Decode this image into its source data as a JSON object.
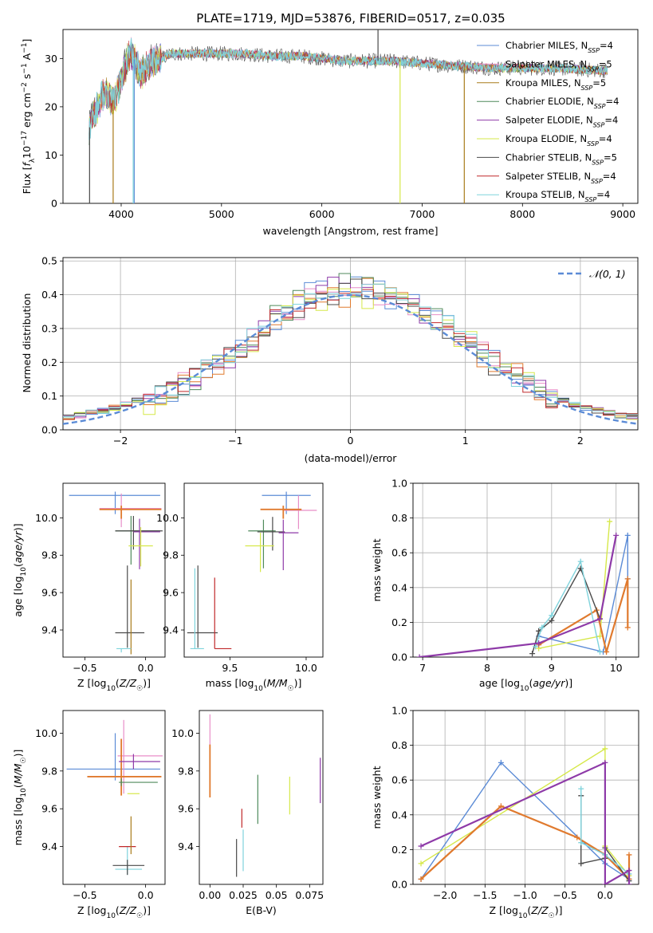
{
  "title": "PLATE=1719, MJD=53876, FIBERID=0517, z=0.035",
  "series_styles": [
    {
      "name": "Chabrier MILES, N_SSP=4",
      "color": "#5b8bd6"
    },
    {
      "name": "Salpeter MILES, N_SSP=5",
      "color": "#e88ec8"
    },
    {
      "name": "Kroupa MILES, N_SSP=5",
      "color": "#a87b1a"
    },
    {
      "name": "Chabrier ELODIE, N_SSP=4",
      "color": "#4f8a5b"
    },
    {
      "name": "Salpeter ELODIE, N_SSP=4",
      "color": "#8e3aa8"
    },
    {
      "name": "Kroupa ELODIE, N_SSP=4",
      "color": "#d6e84a"
    },
    {
      "name": "Chabrier STELIB, N_SSP=5",
      "color": "#4a4a4a"
    },
    {
      "name": "Salpeter STELIB, N_SSP=4",
      "color": "#c0282a"
    },
    {
      "name": "Kroupa STELIB, N_SSP=4",
      "color": "#7fd3dc"
    }
  ],
  "extra_colors": {
    "orange": "#e07a2e",
    "gauss": "#5b8bd6",
    "grid": "#b0b0b0"
  },
  "chart_data": [
    {
      "id": "spectrum",
      "type": "line",
      "title": "PLATE=1719, MJD=53876, FIBERID=0517, z=0.035",
      "xlabel": "wavelength [Angstrom, rest frame]",
      "ylabel": "Flux [f_λ10^-17 erg cm^-2 s^-1 A^-1]",
      "xlim": [
        3420,
        9150
      ],
      "ylim": [
        0,
        36
      ],
      "xticks": [
        4000,
        5000,
        6000,
        7000,
        8000,
        9000
      ],
      "yticks": [
        0,
        10,
        20,
        30
      ],
      "legend": [
        {
          "label": "Chabrier MILES, N",
          "sub": "SSP",
          "tail": "=4"
        },
        {
          "label": "Salpeter MILES, N",
          "sub": "SSP",
          "tail": "=5"
        },
        {
          "label": "Kroupa MILES, N",
          "sub": "SSP",
          "tail": "=5"
        },
        {
          "label": "Chabrier ELODIE, N",
          "sub": "SSP",
          "tail": "=4"
        },
        {
          "label": "Salpeter ELODIE, N",
          "sub": "SSP",
          "tail": "=4"
        },
        {
          "label": "Kroupa ELODIE, N",
          "sub": "SSP",
          "tail": "=4"
        },
        {
          "label": "Chabrier STELIB, N",
          "sub": "SSP",
          "tail": "=5"
        },
        {
          "label": "Salpeter STELIB, N",
          "sub": "SSP",
          "tail": "=4"
        },
        {
          "label": "Kroupa STELIB, N",
          "sub": "SSP",
          "tail": "=4"
        }
      ],
      "legend_loc": "upper right",
      "continuum": [
        [
          3680,
          15
        ],
        [
          3700,
          18
        ],
        [
          3750,
          19
        ],
        [
          3800,
          22
        ],
        [
          3850,
          23
        ],
        [
          3900,
          21
        ],
        [
          3950,
          22
        ],
        [
          4000,
          26
        ],
        [
          4050,
          29
        ],
        [
          4100,
          31
        ],
        [
          4200,
          27
        ],
        [
          4300,
          29
        ],
        [
          4400,
          30
        ],
        [
          4500,
          31
        ],
        [
          4700,
          31
        ],
        [
          5000,
          31
        ],
        [
          5200,
          31
        ],
        [
          5500,
          30.5
        ],
        [
          5800,
          30.5
        ],
        [
          6000,
          30
        ],
        [
          6200,
          29.5
        ],
        [
          6500,
          29.5
        ],
        [
          6700,
          29.5
        ],
        [
          7000,
          29
        ],
        [
          7300,
          28.5
        ],
        [
          7500,
          28.3
        ],
        [
          7700,
          28
        ],
        [
          8000,
          28
        ],
        [
          8300,
          28
        ],
        [
          8600,
          27.7
        ],
        [
          8800,
          27.5
        ],
        [
          8850,
          27.5
        ]
      ],
      "spectrum_xrange": [
        3680,
        8850
      ],
      "dropouts": [
        {
          "x": 4130,
          "color_index": 0,
          "y": 0
        },
        {
          "x": 3920,
          "color_index": 2,
          "y": 0
        },
        {
          "x": 6780,
          "color_index": 5,
          "y": 0
        },
        {
          "x": 7420,
          "color_index": 2,
          "y": 0
        },
        {
          "x": 3685,
          "color_index": 6,
          "y": 0
        },
        {
          "x": 4120,
          "color_index": 8,
          "y": 0
        },
        {
          "x": 6560,
          "color_index": 6,
          "y": 36
        }
      ]
    },
    {
      "id": "residuals",
      "type": "histogram",
      "xlabel": "(data-model)/error",
      "ylabel": "Normed distribution",
      "xlim": [
        -2.5,
        2.5
      ],
      "ylim": [
        0,
        0.51
      ],
      "xticks": [
        -2,
        -1,
        0,
        1,
        2
      ],
      "yticks": [
        0.0,
        0.1,
        0.2,
        0.3,
        0.4,
        0.5
      ],
      "bin_width": 0.1,
      "grid": true,
      "legend": "𝒩(0, 1)",
      "legend_loc": "upper right"
    },
    {
      "id": "age-vs-Z",
      "type": "errorbar",
      "xlabel": "Z [log10(Z/Z☉)]",
      "ylabel": "age  [log10(age/yr)]",
      "xlim": [
        -0.68,
        0.16
      ],
      "ylim": [
        9.255,
        10.185
      ],
      "xticks": [
        -0.5,
        0.0
      ],
      "yticks": [
        9.4,
        9.6,
        9.8,
        10.0
      ],
      "points": [
        {
          "c": 0,
          "x": -0.25,
          "y": 10.12,
          "xerr": [
            0.38,
            0.37
          ],
          "yerr": [
            0.1,
            0.02
          ]
        },
        {
          "c": 1,
          "x": -0.2,
          "y": 10.05,
          "xerr": [
            0.18,
            0.33
          ],
          "yerr": [
            0.1,
            0.08
          ]
        },
        {
          "c": 9,
          "x": -0.2,
          "y": 10.045,
          "xerr": [
            0.18,
            0.33
          ],
          "yerr": [
            0.05,
            0.02
          ]
        },
        {
          "c": 3,
          "x": -0.12,
          "y": 9.93,
          "xerr": [
            0.13,
            0.24
          ],
          "yerr": [
            0.18,
            0.08
          ]
        },
        {
          "c": 6,
          "x": -0.1,
          "y": 9.93,
          "xerr": [
            0.15,
            0.24
          ],
          "yerr": [
            0.1,
            0.08
          ]
        },
        {
          "c": 4,
          "x": -0.05,
          "y": 9.925,
          "xerr": [
            0.05,
            0.17
          ],
          "yerr": [
            0.2,
            0.07
          ]
        },
        {
          "c": 5,
          "x": -0.04,
          "y": 9.85,
          "xerr": [
            0.1,
            0.1
          ],
          "yerr": [
            0.11,
            0.1
          ]
        },
        {
          "c": 6,
          "x": -0.15,
          "y": 9.385,
          "xerr": [
            0.1,
            0.14
          ],
          "yerr": [
            0.08,
            0.36
          ]
        },
        {
          "c": 2,
          "x": -0.12,
          "y": 9.67,
          "xerr": [
            0.0,
            0.0
          ],
          "yerr": [
            0.4,
            0.0
          ]
        },
        {
          "c": 8,
          "x": -0.2,
          "y": 9.3,
          "xerr": [
            0.04,
            0.08
          ],
          "yerr": [
            0.02,
            0.0
          ]
        }
      ]
    },
    {
      "id": "age-vs-mass",
      "type": "errorbar",
      "xlabel": "mass [log10(M/M☉)]",
      "ylabel": "",
      "xlim": [
        9.2,
        10.11
      ],
      "ylim": [
        9.255,
        10.185
      ],
      "xticks": [
        9.5,
        10.0
      ],
      "yticks": [
        9.4,
        9.6,
        9.8,
        10.0
      ],
      "points": [
        {
          "c": 0,
          "x": 9.87,
          "y": 10.12,
          "xerr": [
            0.16,
            0.16
          ],
          "yerr": [
            0.1,
            0.02
          ]
        },
        {
          "c": 1,
          "x": 9.95,
          "y": 10.04,
          "xerr": [
            0.1,
            0.12
          ],
          "yerr": [
            0.1,
            0.08
          ]
        },
        {
          "c": 9,
          "x": 9.85,
          "y": 10.045,
          "xerr": [
            0.15,
            0.12
          ],
          "yerr": [
            0.05,
            0.02
          ]
        },
        {
          "c": 3,
          "x": 9.72,
          "y": 9.93,
          "xerr": [
            0.1,
            0.08
          ],
          "yerr": [
            0.2,
            0.06
          ]
        },
        {
          "c": 6,
          "x": 9.78,
          "y": 9.925,
          "xerr": [
            0.1,
            0.08
          ],
          "yerr": [
            0.1,
            0.08
          ]
        },
        {
          "c": 4,
          "x": 9.85,
          "y": 9.92,
          "xerr": [
            0.03,
            0.1
          ],
          "yerr": [
            0.2,
            0.07
          ]
        },
        {
          "c": 5,
          "x": 9.7,
          "y": 9.85,
          "xerr": [
            0.1,
            0.09
          ],
          "yerr": [
            0.14,
            0.07
          ]
        },
        {
          "c": 6,
          "x": 9.29,
          "y": 9.385,
          "xerr": [
            0.07,
            0.13
          ],
          "yerr": [
            0.08,
            0.36
          ]
        },
        {
          "c": 7,
          "x": 9.4,
          "y": 9.3,
          "xerr": [
            0.0,
            0.11
          ],
          "yerr": [
            0.0,
            0.38
          ]
        },
        {
          "c": 8,
          "x": 9.27,
          "y": 9.3,
          "xerr": [
            0.03,
            0.06
          ],
          "yerr": [
            0.0,
            0.43
          ]
        }
      ]
    },
    {
      "id": "mass-weight-vs-age",
      "type": "line",
      "xlabel": "age  [log10(age/yr)]",
      "ylabel": "mass weight",
      "xlim": [
        6.85,
        10.35
      ],
      "ylim": [
        0,
        1.0
      ],
      "xticks": [
        7,
        8,
        9,
        10
      ],
      "yticks": [
        0.0,
        0.2,
        0.4,
        0.6,
        0.8,
        1.0
      ],
      "grid": true,
      "series": [
        {
          "c": 0,
          "x": [
            8.8,
            9.8,
            10.18,
            10.18
          ],
          "y": [
            0.12,
            0.03,
            0.7,
            0.45
          ],
          "w": 1.4
        },
        {
          "c": 5,
          "x": [
            8.8,
            9.75,
            9.9
          ],
          "y": [
            0.05,
            0.12,
            0.78
          ],
          "w": 1.4
        },
        {
          "c": 9,
          "x": [
            8.8,
            9.7,
            9.85,
            10.18,
            10.18
          ],
          "y": [
            0.07,
            0.27,
            0.03,
            0.45,
            0.17
          ],
          "w": 2.2
        },
        {
          "c": 6,
          "x": [
            8.7,
            8.8,
            9.0,
            9.45,
            9.75
          ],
          "y": [
            0.02,
            0.15,
            0.21,
            0.51,
            0.22
          ],
          "w": 1.4
        },
        {
          "c": 8,
          "x": [
            8.75,
            8.85,
            9.0,
            9.45,
            9.75
          ],
          "y": [
            0.06,
            0.17,
            0.24,
            0.55,
            0.03
          ],
          "w": 1.4
        },
        {
          "c": 4,
          "x": [
            6.95,
            8.8,
            9.75,
            10.0
          ],
          "y": [
            0.0,
            0.08,
            0.22,
            0.7
          ],
          "w": 2.2
        }
      ]
    },
    {
      "id": "mass-vs-Z",
      "type": "errorbar",
      "xlabel": "Z [log10(Z/Z☉)]",
      "ylabel": "mass [log10(M/M☉)]",
      "xlim": [
        -0.68,
        0.16
      ],
      "ylim": [
        9.2,
        10.12
      ],
      "xticks": [
        -0.5,
        0.0
      ],
      "yticks": [
        9.4,
        9.6,
        9.8,
        10.0
      ],
      "points": [
        {
          "c": 0,
          "x": -0.25,
          "y": 9.81,
          "xerr": [
            0.4,
            0.37
          ],
          "yerr": [
            0.06,
            0.19
          ]
        },
        {
          "c": 1,
          "x": -0.18,
          "y": 9.88,
          "xerr": [
            0.05,
            0.32
          ],
          "yerr": [
            0.2,
            0.19
          ]
        },
        {
          "c": 9,
          "x": -0.2,
          "y": 9.77,
          "xerr": [
            0.28,
            0.33
          ],
          "yerr": [
            0.1,
            0.2
          ]
        },
        {
          "c": 4,
          "x": -0.1,
          "y": 9.85,
          "xerr": [
            0.12,
            0.22
          ],
          "yerr": [
            0.04,
            0.04
          ]
        },
        {
          "c": 3,
          "x": -0.2,
          "y": 9.74,
          "xerr": [
            0.02,
            0.3
          ],
          "yerr": [
            0.02,
            0.02
          ]
        },
        {
          "c": 5,
          "x": -0.05,
          "y": 9.68,
          "xerr": [
            0.1,
            0.0
          ],
          "yerr": [
            0.0,
            0.0
          ]
        },
        {
          "c": 8,
          "x": -0.15,
          "y": 9.28,
          "xerr": [
            0.1,
            0.12
          ],
          "yerr": [
            0.03,
            0.12
          ]
        },
        {
          "c": 6,
          "x": -0.15,
          "y": 9.3,
          "xerr": [
            0.12,
            0.14
          ],
          "yerr": [
            0.05,
            0.03
          ]
        },
        {
          "c": 7,
          "x": -0.15,
          "y": 9.4,
          "xerr": [
            0.07,
            0.07
          ],
          "yerr": [
            0.0,
            0.0
          ]
        },
        {
          "c": 2,
          "x": -0.12,
          "y": 9.46,
          "xerr": [
            0.0,
            0.0
          ],
          "yerr": [
            0.1,
            0.1
          ]
        }
      ]
    },
    {
      "id": "mass-vs-EBV",
      "type": "errorbar",
      "xlabel": "E(B-V)",
      "ylabel": "",
      "xlim": [
        -0.008,
        0.085
      ],
      "ylim": [
        9.2,
        10.12
      ],
      "xticks": [
        0.0,
        0.025,
        0.05,
        0.075
      ],
      "xticklabels": [
        "0.00",
        "0.025",
        "0.05",
        "0.075"
      ],
      "yticks": [
        9.4,
        9.6,
        9.8,
        10.0
      ],
      "points": [
        {
          "c": 1,
          "x": 0.0,
          "y": 9.9,
          "xerr": [
            0.0,
            0.0
          ],
          "yerr": [
            0.1,
            0.2
          ]
        },
        {
          "c": 9,
          "x": 0.0,
          "y": 9.8,
          "xerr": [
            0.0,
            0.0
          ],
          "yerr": [
            0.14,
            0.14
          ]
        },
        {
          "c": 8,
          "x": 0.025,
          "y": 9.37,
          "xerr": [
            0.0,
            0.0
          ],
          "yerr": [
            0.1,
            0.12
          ]
        },
        {
          "c": 6,
          "x": 0.02,
          "y": 9.34,
          "xerr": [
            0.0,
            0.0
          ],
          "yerr": [
            0.1,
            0.1
          ]
        },
        {
          "c": 7,
          "x": 0.024,
          "y": 9.55,
          "xerr": [
            0.0,
            0.0
          ],
          "yerr": [
            0.05,
            0.05
          ]
        },
        {
          "c": 3,
          "x": 0.036,
          "y": 9.65,
          "xerr": [
            0.0,
            0.0
          ],
          "yerr": [
            0.13,
            0.13
          ]
        },
        {
          "c": 5,
          "x": 0.06,
          "y": 9.67,
          "xerr": [
            0.0,
            0.0
          ],
          "yerr": [
            0.1,
            0.1
          ]
        },
        {
          "c": 4,
          "x": 0.083,
          "y": 9.75,
          "xerr": [
            0.0,
            0.0
          ],
          "yerr": [
            0.12,
            0.12
          ]
        }
      ]
    },
    {
      "id": "mass-weight-vs-Z",
      "type": "line",
      "xlabel": "Z [log10(Z/Z☉)]",
      "ylabel": "mass weight",
      "xlim": [
        -2.4,
        0.42
      ],
      "ylim": [
        0,
        1.0
      ],
      "xticks": [
        -2.0,
        -1.5,
        -1.0,
        -0.5,
        0.0
      ],
      "yticks": [
        0.0,
        0.2,
        0.4,
        0.6,
        0.8,
        1.0
      ],
      "grid": true,
      "series": [
        {
          "c": 0,
          "x": [
            -2.3,
            -1.3,
            0.0,
            0.3
          ],
          "y": [
            0.03,
            0.7,
            0.12,
            0.03
          ],
          "w": 1.4
        },
        {
          "c": 5,
          "x": [
            -2.3,
            0.0,
            0.0,
            0.3
          ],
          "y": [
            0.12,
            0.78,
            0.22,
            0.05
          ],
          "w": 1.4
        },
        {
          "c": 9,
          "x": [
            -2.3,
            -1.3,
            -0.35,
            0.0,
            0.3,
            0.3
          ],
          "y": [
            0.03,
            0.45,
            0.27,
            0.17,
            0.03,
            0.17
          ],
          "w": 2.2
        },
        {
          "c": 6,
          "x": [
            -0.3,
            -0.3,
            0.0,
            0.0,
            0.3
          ],
          "y": [
            0.51,
            0.12,
            0.15,
            0.21,
            0.02
          ],
          "w": 1.4
        },
        {
          "c": 8,
          "x": [
            -0.3,
            -0.3,
            0.0,
            0.3
          ],
          "y": [
            0.55,
            0.24,
            0.17,
            0.06
          ],
          "w": 1.4
        },
        {
          "c": 4,
          "x": [
            -2.3,
            0.0,
            0.0,
            0.3,
            0.3
          ],
          "y": [
            0.22,
            0.7,
            0.0,
            0.08,
            0.0
          ],
          "w": 2.2
        }
      ]
    }
  ]
}
